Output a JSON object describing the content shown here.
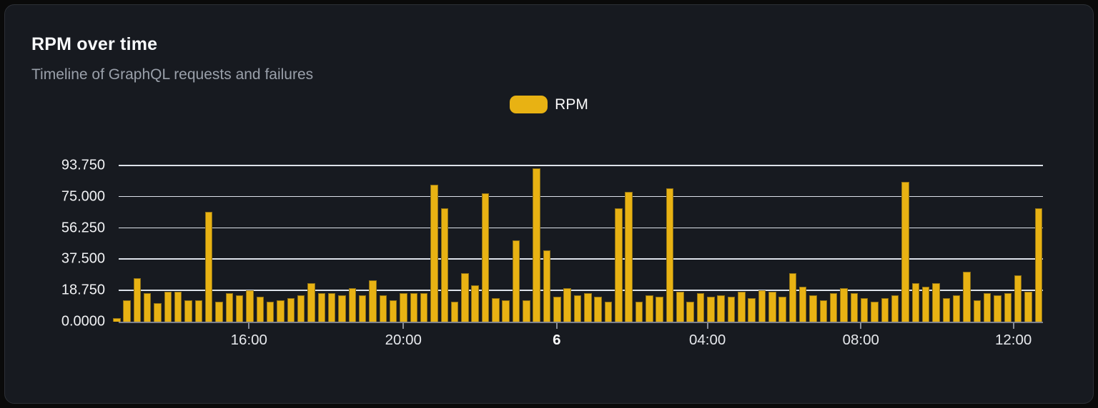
{
  "card": {
    "title": "RPM over time",
    "subtitle": "Timeline of GraphQL requests and failures"
  },
  "chart_data": {
    "type": "bar",
    "title": "RPM over time",
    "subtitle": "Timeline of GraphQL requests and failures",
    "legend": [
      {
        "label": "RPM",
        "color": "#e8b213",
        "stroke": "#8f7115"
      }
    ],
    "legend_position": "top-center",
    "grid": true,
    "ylim": [
      0,
      93.75
    ],
    "y_ticks": [
      {
        "value": 0,
        "label": "0.0000"
      },
      {
        "value": 18.75,
        "label": "18.750"
      },
      {
        "value": 37.5,
        "label": "37.500"
      },
      {
        "value": 56.25,
        "label": "56.250"
      },
      {
        "value": 75,
        "label": "75.000"
      },
      {
        "value": 93.75,
        "label": "93.750"
      }
    ],
    "x_ticks": [
      {
        "label": "16:00",
        "pos": 0.141,
        "bold": false
      },
      {
        "label": "20:00",
        "pos": 0.308,
        "bold": false
      },
      {
        "label": "6",
        "pos": 0.474,
        "bold": true
      },
      {
        "label": "04:00",
        "pos": 0.637,
        "bold": false
      },
      {
        "label": "08:00",
        "pos": 0.803,
        "bold": false
      },
      {
        "label": "12:00",
        "pos": 0.968,
        "bold": false
      }
    ],
    "x_interval_minutes": 15,
    "series": [
      {
        "name": "RPM",
        "values": [
          2,
          13,
          26,
          17,
          11,
          18,
          18,
          13,
          13,
          66,
          12,
          17,
          16,
          19,
          15,
          12,
          13,
          14,
          16,
          23,
          17,
          17,
          16,
          20,
          16,
          25,
          16,
          13,
          17,
          17,
          17,
          82,
          68,
          12,
          29,
          22,
          77,
          14,
          13,
          49,
          13,
          92,
          43,
          15,
          20,
          16,
          17,
          15,
          12,
          68,
          78,
          12,
          16,
          15,
          80,
          18,
          12,
          17,
          15,
          16,
          15,
          18,
          14,
          19,
          18,
          15,
          29,
          21,
          16,
          13,
          17,
          20,
          17,
          14,
          12,
          14,
          16,
          84,
          23,
          21,
          23,
          14,
          16,
          30,
          13,
          17,
          16,
          17,
          28,
          18,
          68
        ]
      }
    ]
  }
}
